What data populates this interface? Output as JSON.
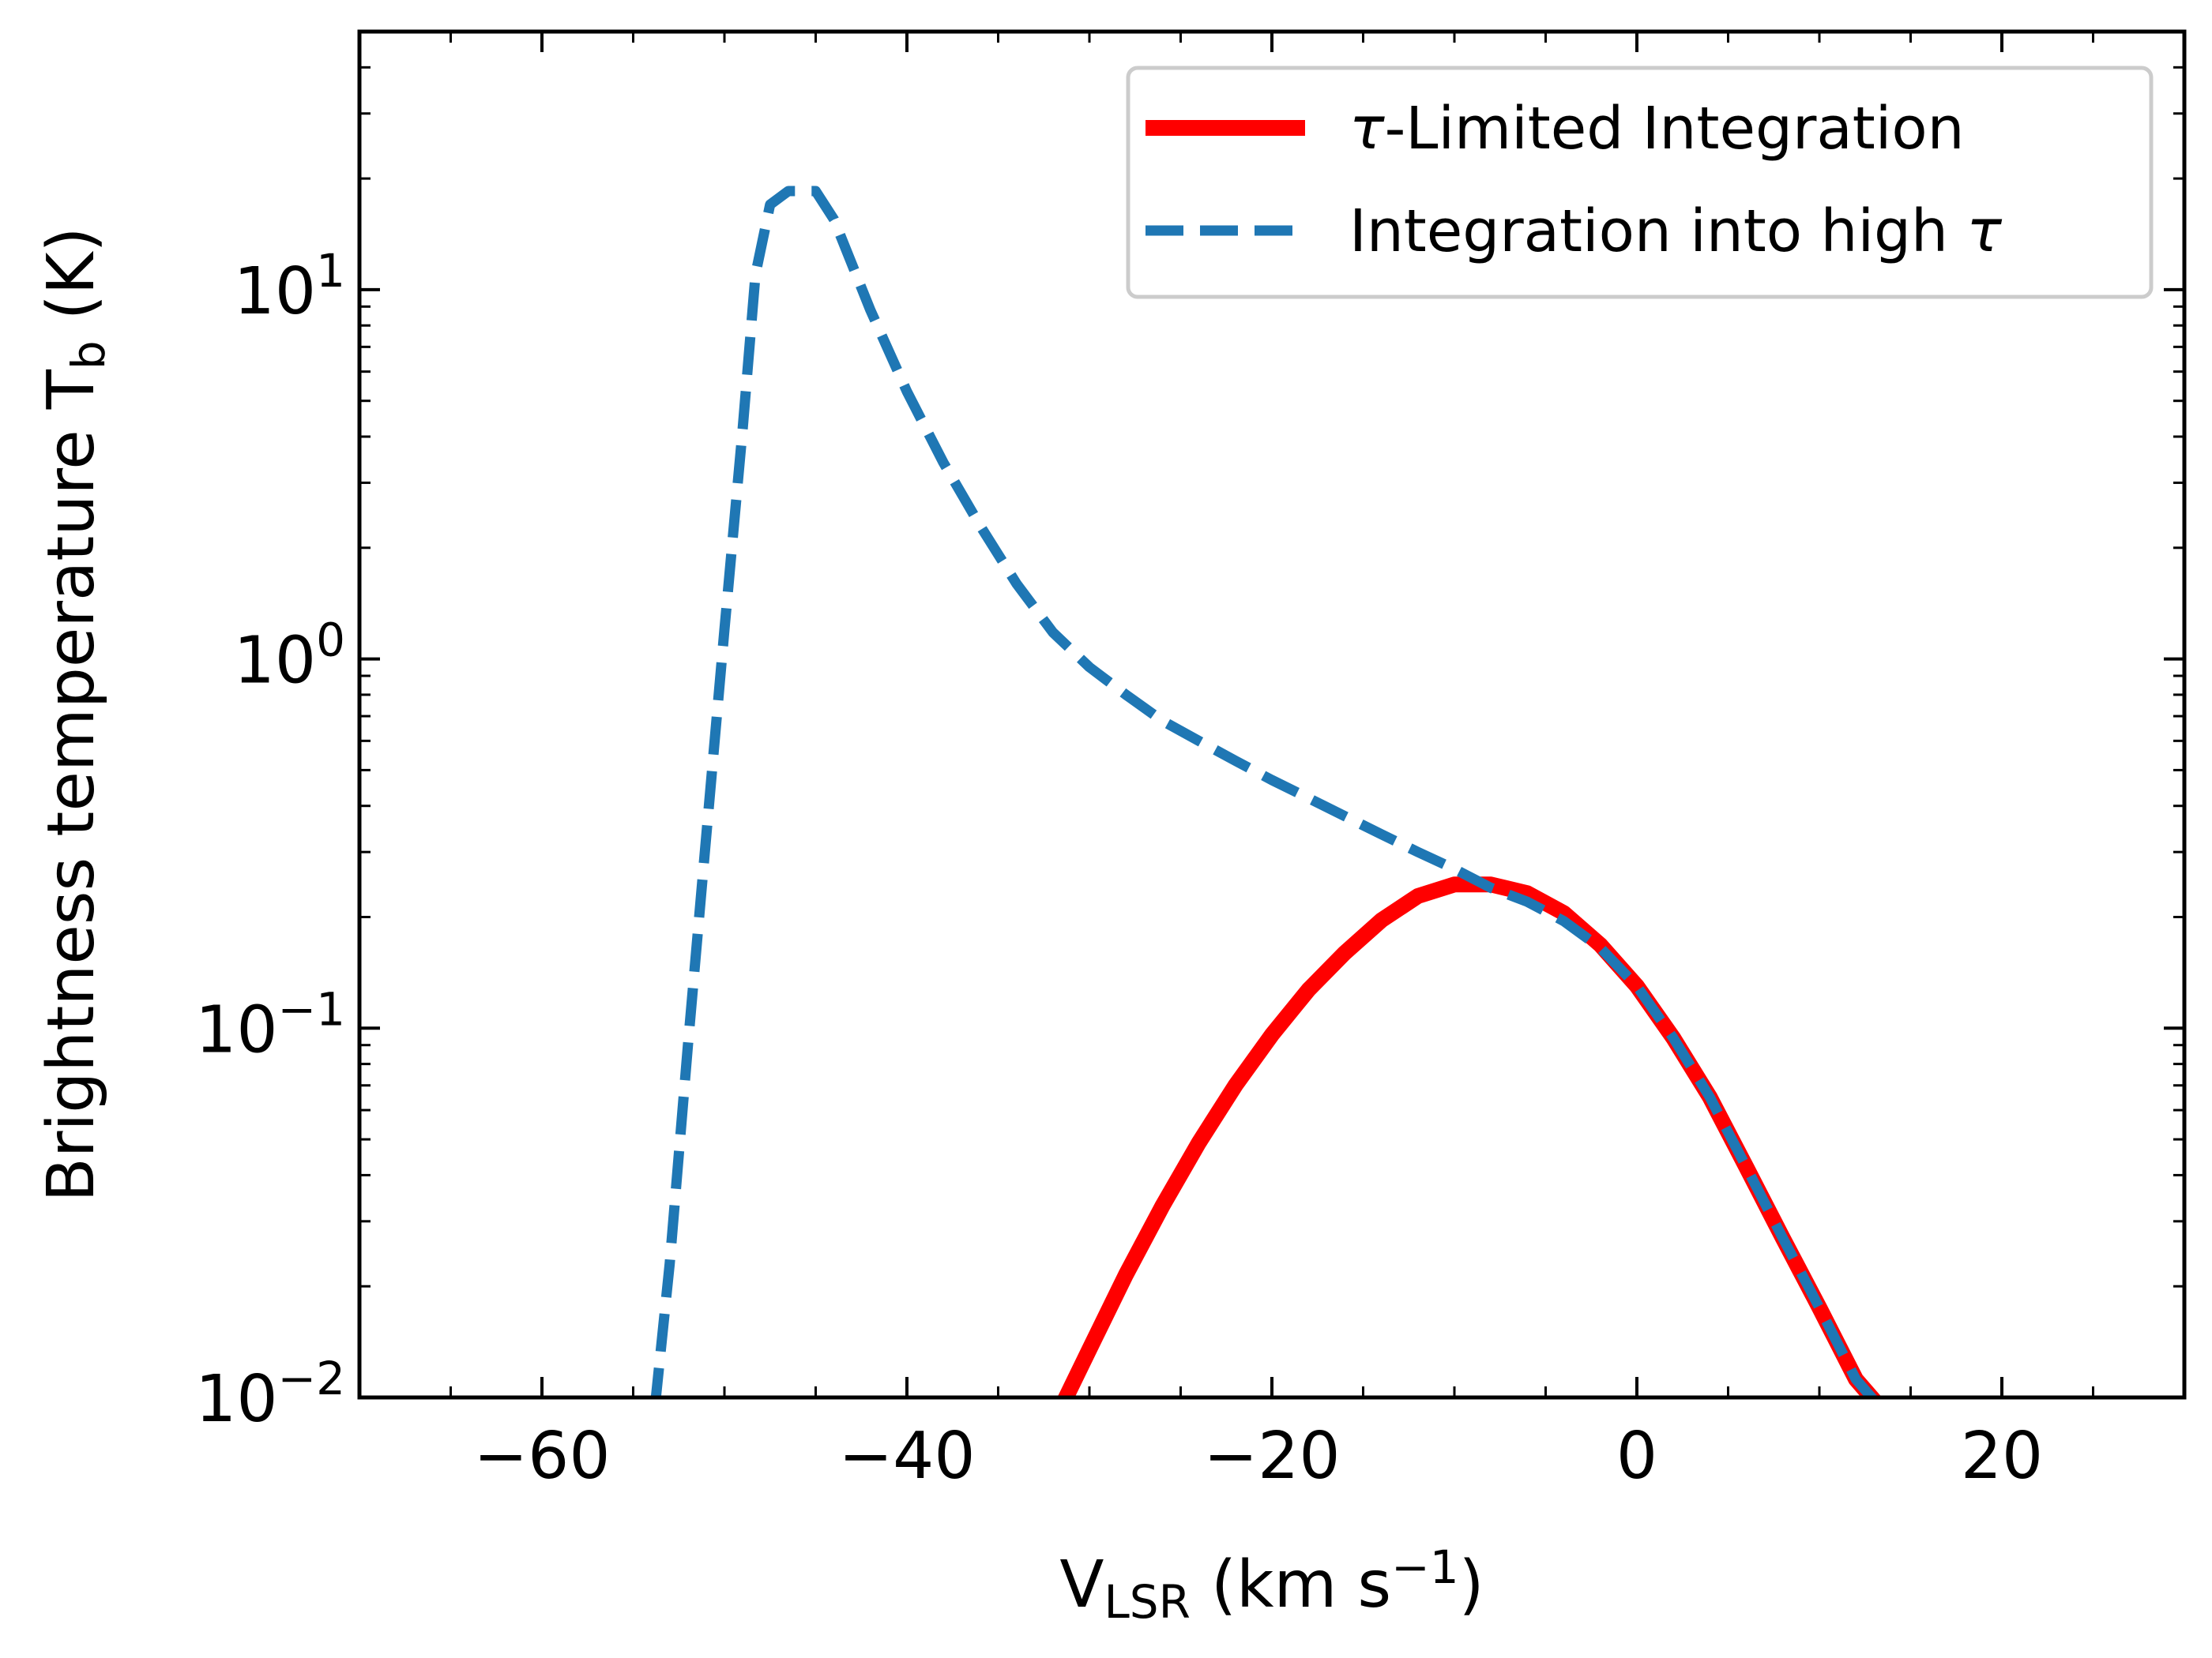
{
  "chart_data": {
    "type": "line",
    "xlabel": {
      "main": "V",
      "sub": "LSR",
      "paren": " (km s",
      "sup": "−1",
      "close": ")"
    },
    "ylabel": {
      "main": "Brightness temperature T",
      "sub": "b",
      "unit": " (K)"
    },
    "xlim": [
      -70,
      30
    ],
    "ylim": [
      0.01,
      50
    ],
    "yscale": "log",
    "xticks": [
      {
        "value": -60,
        "label": "−60"
      },
      {
        "value": -40,
        "label": "−40"
      },
      {
        "value": -20,
        "label": "−20"
      },
      {
        "value": 0,
        "label": "0"
      },
      {
        "value": 20,
        "label": "20"
      }
    ],
    "yticks": [
      {
        "value": 0.01,
        "base": "10",
        "exp": "−2"
      },
      {
        "value": 0.1,
        "base": "10",
        "exp": "−1"
      },
      {
        "value": 1,
        "base": "10",
        "exp": "0"
      },
      {
        "value": 10,
        "base": "10",
        "exp": "1"
      }
    ],
    "legend": {
      "position": "top-right"
    },
    "series": [
      {
        "name": "τ-Limited Integration",
        "legend_symbol": "τ",
        "legend_text": "-Limited Integration",
        "color": "#ff0000",
        "style": "solid",
        "x": [
          -31.5,
          -30,
          -28,
          -26,
          -24,
          -22,
          -20,
          -18,
          -16,
          -14,
          -12,
          -10,
          -8,
          -6,
          -4,
          -2,
          0,
          2,
          4,
          6,
          8,
          10,
          12,
          13.5
        ],
        "y": [
          0.0095,
          0.0135,
          0.0215,
          0.033,
          0.049,
          0.07,
          0.096,
          0.127,
          0.16,
          0.196,
          0.228,
          0.245,
          0.245,
          0.232,
          0.205,
          0.168,
          0.13,
          0.094,
          0.065,
          0.042,
          0.027,
          0.0175,
          0.0112,
          0.0092
        ]
      },
      {
        "name": "Integration into high τ",
        "legend_symbol": "τ",
        "legend_text": "Integration into high ",
        "color": "#1f77b4",
        "style": "dashed",
        "x": [
          -53.8,
          -53,
          -52,
          -51,
          -50,
          -49,
          -48.3,
          -47.5,
          -46.5,
          -45.5,
          -45,
          -44,
          -42,
          -40,
          -38,
          -36,
          -34,
          -32,
          -30,
          -28,
          -26,
          -24,
          -22,
          -20,
          -18,
          -16,
          -14,
          -12,
          -10,
          -8,
          -6,
          -4,
          -2,
          0,
          2,
          4,
          6,
          8,
          10,
          12,
          13.5
        ],
        "y": [
          0.0095,
          0.023,
          0.09,
          0.33,
          1.2,
          4.2,
          11,
          17,
          18.5,
          18.5,
          18.5,
          15.5,
          8.8,
          5.3,
          3.4,
          2.3,
          1.6,
          1.18,
          0.95,
          0.8,
          0.68,
          0.6,
          0.53,
          0.47,
          0.42,
          0.375,
          0.335,
          0.3,
          0.27,
          0.24,
          0.22,
          0.195,
          0.165,
          0.13,
          0.094,
          0.065,
          0.042,
          0.027,
          0.0175,
          0.0112,
          0.0092
        ]
      }
    ]
  }
}
